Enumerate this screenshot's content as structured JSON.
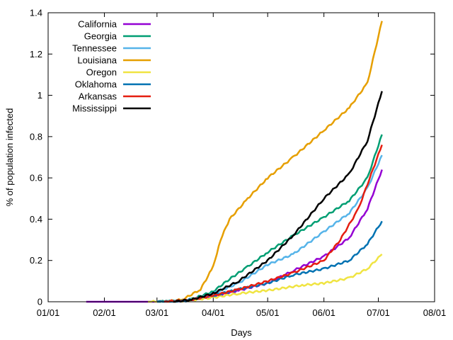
{
  "chart_data": {
    "type": "line",
    "xlabel": "Days",
    "ylabel": "% of population infected",
    "xlim": [
      "2020-01-01",
      "2020-08-01"
    ],
    "ylim": [
      0,
      1.4
    ],
    "xticks": [
      "01/01",
      "02/01",
      "03/01",
      "04/01",
      "05/01",
      "06/01",
      "07/01",
      "08/01"
    ],
    "yticks": [
      "0",
      "0.2",
      "0.4",
      "0.6",
      "0.8",
      "1",
      "1.2",
      "1.4"
    ],
    "grid": false,
    "legend_position": "top-left",
    "series": [
      {
        "name": "California",
        "color": "#9400d3",
        "points": [
          [
            "2020-01-22",
            0
          ],
          [
            "2020-03-01",
            0
          ],
          [
            "2020-03-10",
            0.002
          ],
          [
            "2020-03-20",
            0.008
          ],
          [
            "2020-04-01",
            0.025
          ],
          [
            "2020-04-15",
            0.055
          ],
          [
            "2020-05-01",
            0.09
          ],
          [
            "2020-05-15",
            0.15
          ],
          [
            "2020-06-01",
            0.22
          ],
          [
            "2020-06-15",
            0.31
          ],
          [
            "2020-06-25",
            0.45
          ],
          [
            "2020-07-03",
            0.64
          ]
        ]
      },
      {
        "name": "Georgia",
        "color": "#009e73",
        "points": [
          [
            "2020-03-01",
            0
          ],
          [
            "2020-03-10",
            0.002
          ],
          [
            "2020-03-20",
            0.012
          ],
          [
            "2020-04-01",
            0.05
          ],
          [
            "2020-04-10",
            0.11
          ],
          [
            "2020-04-20",
            0.17
          ],
          [
            "2020-05-01",
            0.24
          ],
          [
            "2020-05-15",
            0.32
          ],
          [
            "2020-06-01",
            0.41
          ],
          [
            "2020-06-15",
            0.49
          ],
          [
            "2020-06-25",
            0.6
          ],
          [
            "2020-07-03",
            0.81
          ]
        ]
      },
      {
        "name": "Tennessee",
        "color": "#56b4e9",
        "points": [
          [
            "2020-03-05",
            0
          ],
          [
            "2020-03-15",
            0.005
          ],
          [
            "2020-03-25",
            0.02
          ],
          [
            "2020-04-01",
            0.04
          ],
          [
            "2020-04-15",
            0.09
          ],
          [
            "2020-05-01",
            0.18
          ],
          [
            "2020-05-15",
            0.23
          ],
          [
            "2020-06-01",
            0.34
          ],
          [
            "2020-06-15",
            0.43
          ],
          [
            "2020-06-25",
            0.55
          ],
          [
            "2020-07-03",
            0.71
          ]
        ]
      },
      {
        "name": "Louisiana",
        "color": "#e69f00",
        "points": [
          [
            "2020-03-05",
            0
          ],
          [
            "2020-03-15",
            0.01
          ],
          [
            "2020-03-25",
            0.06
          ],
          [
            "2020-04-01",
            0.17
          ],
          [
            "2020-04-05",
            0.3
          ],
          [
            "2020-04-10",
            0.4
          ],
          [
            "2020-04-20",
            0.5
          ],
          [
            "2020-05-01",
            0.6
          ],
          [
            "2020-05-15",
            0.7
          ],
          [
            "2020-06-01",
            0.83
          ],
          [
            "2020-06-15",
            0.94
          ],
          [
            "2020-06-25",
            1.06
          ],
          [
            "2020-07-03",
            1.36
          ]
        ]
      },
      {
        "name": "Oregon",
        "color": "#f0e442",
        "points": [
          [
            "2020-02-25",
            0
          ],
          [
            "2020-03-15",
            0.003
          ],
          [
            "2020-04-01",
            0.02
          ],
          [
            "2020-04-15",
            0.04
          ],
          [
            "2020-05-01",
            0.055
          ],
          [
            "2020-05-20",
            0.08
          ],
          [
            "2020-06-01",
            0.09
          ],
          [
            "2020-06-15",
            0.115
          ],
          [
            "2020-06-25",
            0.16
          ],
          [
            "2020-07-03",
            0.23
          ]
        ]
      },
      {
        "name": "Oklahoma",
        "color": "#0072b2",
        "points": [
          [
            "2020-03-01",
            0
          ],
          [
            "2020-03-15",
            0.002
          ],
          [
            "2020-04-01",
            0.03
          ],
          [
            "2020-04-15",
            0.06
          ],
          [
            "2020-05-01",
            0.09
          ],
          [
            "2020-05-15",
            0.13
          ],
          [
            "2020-06-01",
            0.16
          ],
          [
            "2020-06-15",
            0.2
          ],
          [
            "2020-06-25",
            0.28
          ],
          [
            "2020-07-03",
            0.39
          ]
        ]
      },
      {
        "name": "Arkansas",
        "color": "#e51e10",
        "points": [
          [
            "2020-03-05",
            0
          ],
          [
            "2020-03-20",
            0.01
          ],
          [
            "2020-04-01",
            0.03
          ],
          [
            "2020-04-15",
            0.06
          ],
          [
            "2020-05-01",
            0.1
          ],
          [
            "2020-05-15",
            0.14
          ],
          [
            "2020-06-01",
            0.2
          ],
          [
            "2020-06-10",
            0.3
          ],
          [
            "2020-06-20",
            0.45
          ],
          [
            "2020-07-03",
            0.76
          ]
        ]
      },
      {
        "name": "Mississippi",
        "color": "#000000",
        "points": [
          [
            "2020-03-10",
            0
          ],
          [
            "2020-03-20",
            0.01
          ],
          [
            "2020-04-01",
            0.04
          ],
          [
            "2020-04-15",
            0.1
          ],
          [
            "2020-05-01",
            0.2
          ],
          [
            "2020-05-15",
            0.32
          ],
          [
            "2020-06-01",
            0.5
          ],
          [
            "2020-06-15",
            0.62
          ],
          [
            "2020-06-25",
            0.78
          ],
          [
            "2020-07-03",
            1.02
          ]
        ]
      }
    ]
  }
}
